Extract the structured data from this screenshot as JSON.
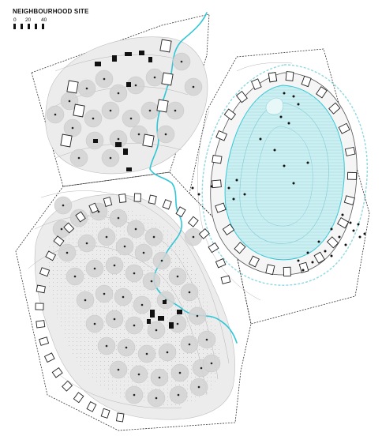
{
  "title": "NEIGHBOURHOOD SITE",
  "scale_bar": {
    "labels": [
      "0",
      "20",
      "40"
    ]
  },
  "colors": {
    "water": "#2fc6d6",
    "pond_fill": "#cdeff2",
    "pond_hatch": "#8fd8e0",
    "tree_canopy": "#d3d3d3",
    "zone_fill": "#ececec",
    "building": "#111111",
    "contour": "#b5b5b5",
    "boundary": "#333333"
  }
}
